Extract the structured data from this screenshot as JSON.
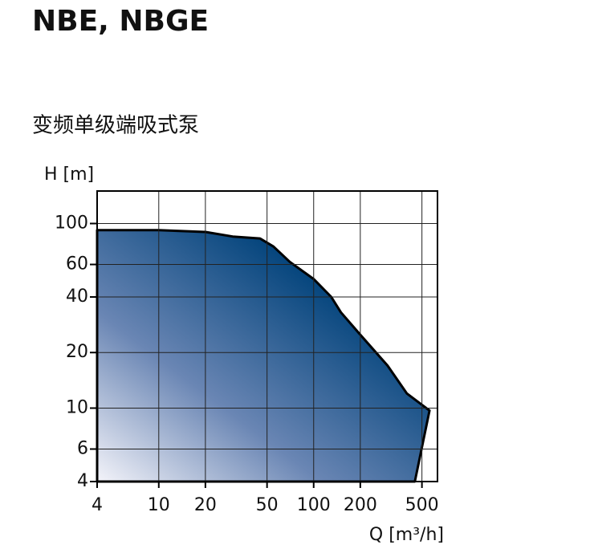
{
  "chart_data": {
    "type": "area",
    "title": "NBE, NBGE",
    "subtitle": "变频单级端吸式泵",
    "y_label": "H [m]",
    "x_label": "Q [m³/h]",
    "log_x": true,
    "log_y": true,
    "grid": true,
    "color": "#00427a",
    "xlim": [
      4,
      630
    ],
    "ylim": [
      4,
      150
    ],
    "xticks": [
      4,
      10,
      20,
      50,
      100,
      200,
      500
    ],
    "yticks": [
      4,
      6,
      10,
      20,
      40,
      60,
      100
    ],
    "x": [
      4,
      10,
      20,
      30,
      45,
      55,
      70,
      100,
      130,
      150,
      200,
      300,
      400,
      560,
      450,
      4
    ],
    "values": [
      92,
      92,
      90,
      85,
      83,
      75,
      62,
      50,
      40,
      33,
      25,
      17,
      12,
      9.7,
      4,
      4
    ]
  }
}
